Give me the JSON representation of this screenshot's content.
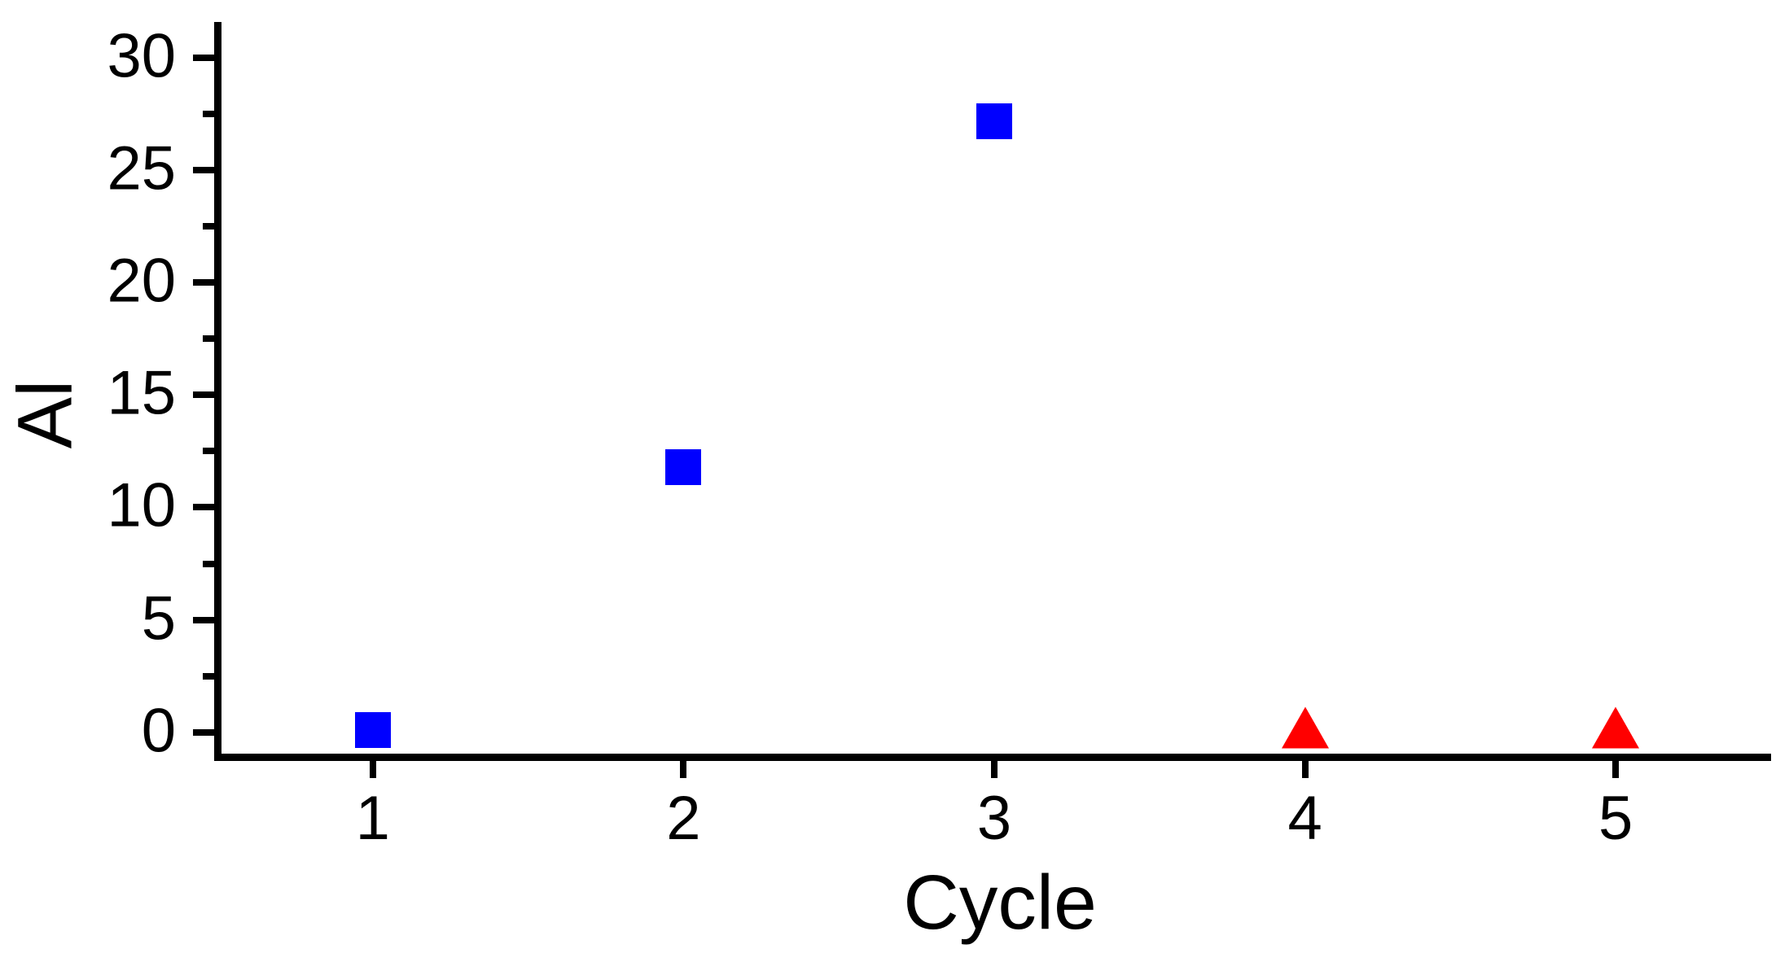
{
  "figure": {
    "background_color": "#FFFFFF",
    "axis_color": "#000000",
    "text_color": "#000000"
  },
  "chart_data": {
    "type": "scatter",
    "title": "",
    "xlabel": "Cycle",
    "ylabel": "Al",
    "xlim": [
      0.5,
      5.5
    ],
    "ylim": [
      -1.1,
      31.6
    ],
    "x_ticks": [
      "1",
      "2",
      "3",
      "4",
      "5"
    ],
    "x_tick_values": [
      1,
      2,
      3,
      4,
      5
    ],
    "y_ticks": [
      "0",
      "5",
      "10",
      "15",
      "20",
      "25",
      "30"
    ],
    "y_tick_values": [
      0,
      5,
      10,
      15,
      20,
      25,
      30
    ],
    "y_minor_tick_values": [
      2.5,
      7.5,
      12.5,
      17.5,
      22.5,
      27.5
    ],
    "grid": false,
    "legend_position": "none",
    "series": [
      {
        "name": "blue-squares",
        "marker": "square",
        "color": "#0000FF",
        "points": [
          {
            "x": 1,
            "y": 0.1
          },
          {
            "x": 2,
            "y": 11.8
          },
          {
            "x": 3,
            "y": 27.2
          }
        ]
      },
      {
        "name": "red-triangles",
        "marker": "triangle-up",
        "color": "#FF0000",
        "points": [
          {
            "x": 4,
            "y": 0.2
          },
          {
            "x": 5,
            "y": 0.2
          }
        ]
      }
    ]
  }
}
